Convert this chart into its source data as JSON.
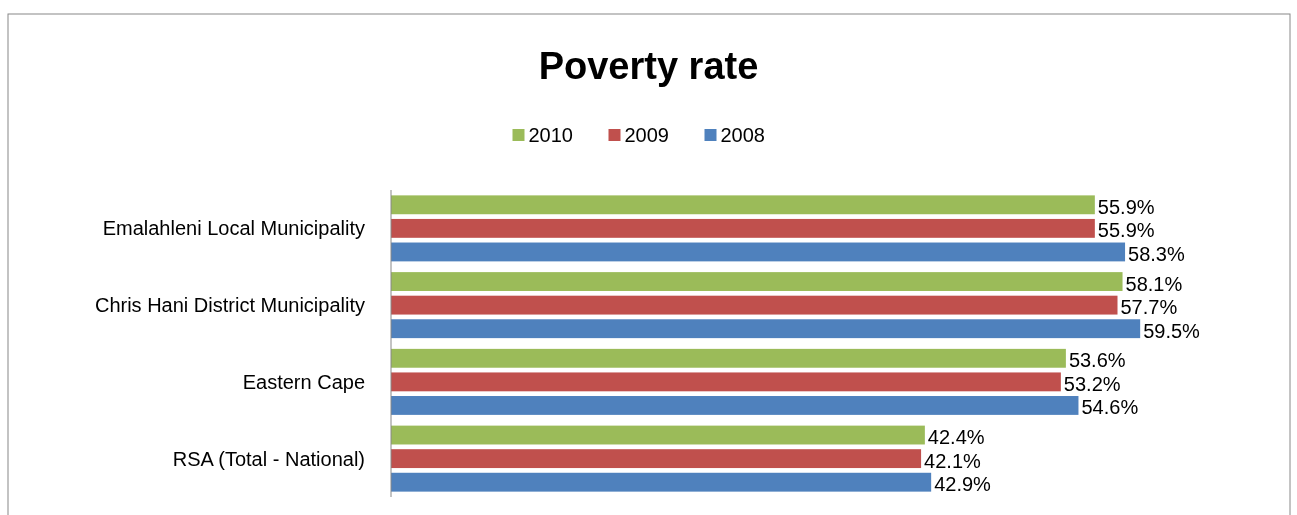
{
  "chart_data": {
    "type": "bar",
    "orientation": "horizontal",
    "title": "Poverty rate",
    "legend": "top",
    "categories": [
      "Emalahleni Local Municipality",
      "Chris Hani District Municipality",
      "Eastern Cape",
      "RSA (Total - National)"
    ],
    "series": [
      {
        "name": "2010",
        "color": "#9bbb59",
        "values": [
          55.9,
          58.1,
          53.6,
          42.4
        ],
        "value_labels": [
          "55.9%",
          "58.1%",
          "53.6%",
          "42.4%"
        ]
      },
      {
        "name": "2009",
        "color": "#c0504d",
        "values": [
          55.9,
          57.7,
          53.2,
          42.1
        ],
        "value_labels": [
          "55.9%",
          "57.7%",
          "53.2%",
          "42.1%"
        ]
      },
      {
        "name": "2008",
        "color": "#4f81bd",
        "values": [
          58.3,
          59.5,
          54.6,
          42.9
        ],
        "value_labels": [
          "58.3%",
          "59.5%",
          "54.6%",
          "42.9%"
        ]
      }
    ]
  }
}
